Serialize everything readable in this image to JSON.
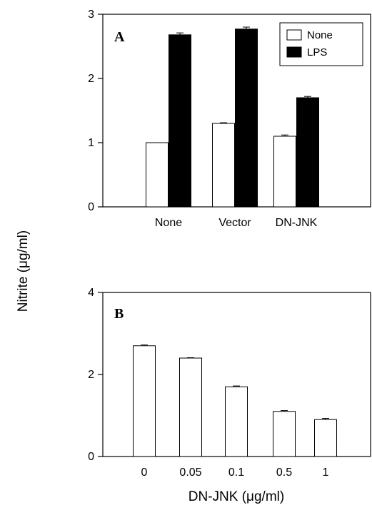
{
  "ylabel": "Nitrite (μg/ml)",
  "chart_data": [
    {
      "type": "bar",
      "panel_label": "A",
      "categories": [
        "None",
        "Vector",
        "DN-JNK"
      ],
      "series": [
        {
          "name": "None",
          "color": "#ffffff",
          "values": [
            1.0,
            1.3,
            1.1
          ],
          "errors": [
            0.0,
            0.01,
            0.02
          ]
        },
        {
          "name": "LPS",
          "color": "#000000",
          "values": [
            2.68,
            2.77,
            1.7
          ],
          "errors": [
            0.03,
            0.03,
            0.02
          ]
        }
      ],
      "ylim": [
        0,
        3
      ],
      "yticks": [
        "0",
        "1",
        "2",
        "3"
      ],
      "legend_position": "top-right"
    },
    {
      "type": "bar",
      "panel_label": "B",
      "categories": [
        "0",
        "0.05",
        "0.1",
        "0.5",
        "1"
      ],
      "series": [
        {
          "color": "#ffffff",
          "values": [
            2.7,
            2.4,
            1.7,
            1.1,
            0.9
          ],
          "errors": [
            0.02,
            0.01,
            0.02,
            0.02,
            0.03
          ]
        }
      ],
      "ylim": [
        0,
        4
      ],
      "yticks": [
        "0",
        "2",
        "4"
      ],
      "xlabel": "DN-JNK (μg/ml)"
    }
  ]
}
